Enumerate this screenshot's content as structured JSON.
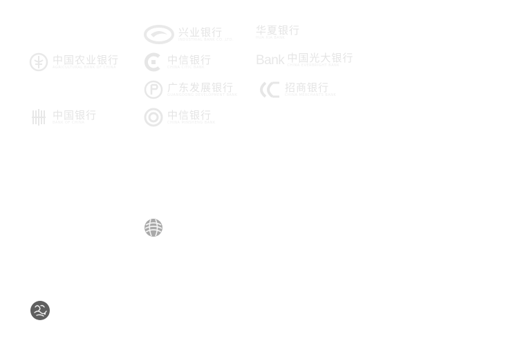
{
  "logos": {
    "cib": {
      "name": "兴业银行",
      "sub": "INDUSTRIAL BANK CO.,LTD."
    },
    "hx": {
      "name": "华夏银行",
      "sub": "HUA XIA BANK"
    },
    "abc": {
      "name": "中国农业银行",
      "sub": "AGRICULTURAL BANK OF CHINA"
    },
    "citic": {
      "name": "中信银行",
      "sub": "CHINA CITIC BANK"
    },
    "ceb": {
      "prefix": "Bank",
      "name": "中国光大银行",
      "sub": "CHINA EVERBRIGHT BANK"
    },
    "gdb": {
      "name": "广东发展银行",
      "sub": "GUANGDONG DEVELOPMENT BANK"
    },
    "cmb": {
      "name": "招商银行",
      "sub": "CHINA MERCHANTS BANK"
    },
    "icbc": {
      "name": "中国银行",
      "sub": "BANK OF CHINA"
    },
    "cmbc": {
      "name": "中信银行",
      "sub": "CHINA MINSHENG BANK"
    }
  },
  "colors": {
    "logo_gray": "#cfcfcf",
    "badge_dark": "#5f5f5f"
  }
}
